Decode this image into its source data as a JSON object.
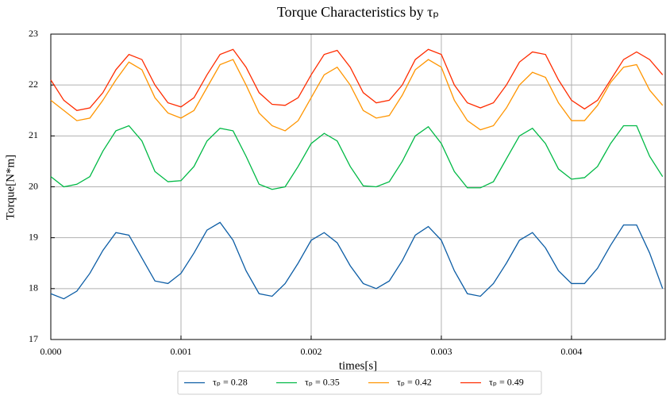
{
  "chart_data": {
    "type": "line",
    "title": "Torque Characteristics by τₚ",
    "xlabel": "times[s]",
    "ylabel": "Torque[N*m]",
    "x": [
      0,
      0.0001,
      0.0002,
      0.0003,
      0.0004,
      0.0005,
      0.0006,
      0.0007,
      0.0008,
      0.0009,
      0.001,
      0.0011,
      0.0012,
      0.0013,
      0.0014,
      0.0015,
      0.0016,
      0.0017,
      0.0018,
      0.0019,
      0.002,
      0.0021,
      0.0022,
      0.0023,
      0.0024,
      0.0025,
      0.0026,
      0.0027,
      0.0028,
      0.0029,
      0.003,
      0.0031,
      0.0032,
      0.0033,
      0.0034,
      0.0035,
      0.0036,
      0.0037,
      0.0038,
      0.0039,
      0.004,
      0.0041,
      0.0042,
      0.0043,
      0.0044,
      0.0045,
      0.0046,
      0.0047
    ],
    "series": [
      {
        "name": "τₚ = 0.28",
        "color": "#0c5da5",
        "values": [
          17.9,
          17.8,
          17.95,
          18.3,
          18.75,
          19.1,
          19.05,
          18.6,
          18.15,
          18.1,
          18.3,
          18.7,
          19.15,
          19.3,
          18.95,
          18.35,
          17.9,
          17.85,
          18.1,
          18.5,
          18.95,
          19.1,
          18.9,
          18.45,
          18.1,
          18.0,
          18.15,
          18.55,
          19.05,
          19.22,
          18.95,
          18.35,
          17.9,
          17.85,
          18.1,
          18.5,
          18.95,
          19.1,
          18.8,
          18.35,
          18.1,
          18.1,
          18.4,
          18.85,
          19.25,
          19.25,
          18.7,
          18.0
        ]
      },
      {
        "name": "τₚ = 0.35",
        "color": "#00b945",
        "values": [
          20.2,
          20.0,
          20.05,
          20.2,
          20.7,
          21.1,
          21.2,
          20.9,
          20.3,
          20.1,
          20.12,
          20.4,
          20.9,
          21.15,
          21.1,
          20.6,
          20.05,
          19.95,
          20.0,
          20.4,
          20.85,
          21.05,
          20.9,
          20.4,
          20.02,
          20.0,
          20.1,
          20.5,
          21.0,
          21.18,
          20.85,
          20.3,
          19.98,
          19.98,
          20.1,
          20.55,
          21.0,
          21.15,
          20.85,
          20.35,
          20.15,
          20.18,
          20.4,
          20.85,
          21.2,
          21.2,
          20.6,
          20.2
        ]
      },
      {
        "name": "τₚ = 0.42",
        "color": "#ff9500",
        "values": [
          21.7,
          21.5,
          21.3,
          21.35,
          21.7,
          22.1,
          22.45,
          22.3,
          21.75,
          21.45,
          21.35,
          21.5,
          21.95,
          22.4,
          22.5,
          22.0,
          21.45,
          21.2,
          21.1,
          21.3,
          21.75,
          22.2,
          22.35,
          22.0,
          21.5,
          21.35,
          21.4,
          21.8,
          22.3,
          22.5,
          22.35,
          21.7,
          21.3,
          21.12,
          21.2,
          21.55,
          22.0,
          22.25,
          22.15,
          21.65,
          21.3,
          21.3,
          21.6,
          22.05,
          22.35,
          22.4,
          21.9,
          21.6
        ]
      },
      {
        "name": "τₚ = 0.49",
        "color": "#ff2c00",
        "values": [
          22.1,
          21.7,
          21.5,
          21.55,
          21.85,
          22.3,
          22.6,
          22.5,
          22.0,
          21.65,
          21.57,
          21.75,
          22.2,
          22.6,
          22.7,
          22.35,
          21.85,
          21.62,
          21.6,
          21.75,
          22.2,
          22.6,
          22.68,
          22.35,
          21.85,
          21.65,
          21.7,
          22.0,
          22.5,
          22.7,
          22.6,
          22.0,
          21.65,
          21.55,
          21.65,
          22.0,
          22.45,
          22.65,
          22.6,
          22.1,
          21.7,
          21.53,
          21.7,
          22.1,
          22.5,
          22.65,
          22.5,
          22.2
        ]
      }
    ],
    "xlim": [
      0,
      0.00472
    ],
    "xticks": [
      {
        "value": 0,
        "label": "0.000"
      },
      0.001,
      0.002,
      0.003,
      0.004
    ],
    "ylim": [
      17,
      23
    ],
    "yticks": [
      17,
      18,
      19,
      20,
      21,
      22,
      23
    ],
    "grid": true,
    "legend": "bottom"
  }
}
